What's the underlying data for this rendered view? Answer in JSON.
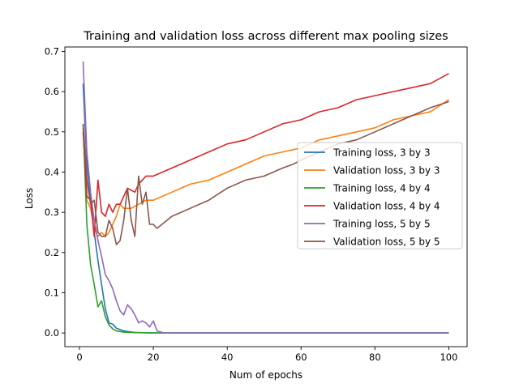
{
  "chart_data": {
    "type": "line",
    "title": "Training and validation loss across different max pooling sizes",
    "xlabel": "Num of epochs",
    "ylabel": "Loss",
    "xlim": [
      -3.95,
      104.95
    ],
    "ylim": [
      -0.034,
      0.711
    ],
    "xticks": [
      0,
      20,
      40,
      60,
      80,
      100
    ],
    "yticks": [
      0.0,
      0.1,
      0.2,
      0.3,
      0.4,
      0.5,
      0.6,
      0.7
    ],
    "xtick_labels": [
      "0",
      "20",
      "40",
      "60",
      "80",
      "100"
    ],
    "ytick_labels": [
      "0.0",
      "0.1",
      "0.2",
      "0.3",
      "0.4",
      "0.5",
      "0.6",
      "0.7"
    ],
    "grid": false,
    "legend_position": "center-right",
    "series": [
      {
        "name": "Training loss, 3 by 3",
        "color": "#1f77b4",
        "points": [
          [
            1,
            0.62
          ],
          [
            2,
            0.42
          ],
          [
            3,
            0.33
          ],
          [
            4,
            0.25
          ],
          [
            5,
            0.18
          ],
          [
            6,
            0.12
          ],
          [
            7,
            0.06
          ],
          [
            8,
            0.025
          ],
          [
            9,
            0.022
          ],
          [
            10,
            0.012
          ],
          [
            12,
            0.005
          ],
          [
            15,
            0.001
          ],
          [
            20,
            0.0
          ],
          [
            100,
            0.0
          ]
        ]
      },
      {
        "name": "Validation loss, 3 by 3",
        "color": "#ff7f0e",
        "points": [
          [
            1,
            0.51
          ],
          [
            2,
            0.33
          ],
          [
            3,
            0.31
          ],
          [
            4,
            0.26
          ],
          [
            5,
            0.24
          ],
          [
            6,
            0.25
          ],
          [
            7,
            0.24
          ],
          [
            8,
            0.25
          ],
          [
            9,
            0.27
          ],
          [
            10,
            0.29
          ],
          [
            11,
            0.32
          ],
          [
            12,
            0.31
          ],
          [
            14,
            0.31
          ],
          [
            16,
            0.32
          ],
          [
            18,
            0.33
          ],
          [
            20,
            0.33
          ],
          [
            25,
            0.35
          ],
          [
            30,
            0.37
          ],
          [
            35,
            0.38
          ],
          [
            40,
            0.4
          ],
          [
            45,
            0.42
          ],
          [
            50,
            0.44
          ],
          [
            55,
            0.45
          ],
          [
            60,
            0.46
          ],
          [
            65,
            0.48
          ],
          [
            70,
            0.49
          ],
          [
            75,
            0.5
          ],
          [
            80,
            0.51
          ],
          [
            85,
            0.53
          ],
          [
            90,
            0.54
          ],
          [
            95,
            0.55
          ],
          [
            100,
            0.58
          ]
        ]
      },
      {
        "name": "Training loss, 4 by 4",
        "color": "#2ca02c",
        "points": [
          [
            1,
            0.52
          ],
          [
            2,
            0.27
          ],
          [
            3,
            0.17
          ],
          [
            4,
            0.12
          ],
          [
            5,
            0.065
          ],
          [
            6,
            0.08
          ],
          [
            7,
            0.04
          ],
          [
            8,
            0.02
          ],
          [
            9,
            0.01
          ],
          [
            10,
            0.005
          ],
          [
            12,
            0.002
          ],
          [
            15,
            0.001
          ],
          [
            20,
            0.0
          ],
          [
            100,
            0.0
          ]
        ]
      },
      {
        "name": "Validation loss, 4 by 4",
        "color": "#d62728",
        "points": [
          [
            1,
            0.5
          ],
          [
            2,
            0.34
          ],
          [
            3,
            0.33
          ],
          [
            4,
            0.24
          ],
          [
            5,
            0.38
          ],
          [
            6,
            0.3
          ],
          [
            7,
            0.29
          ],
          [
            8,
            0.32
          ],
          [
            9,
            0.3
          ],
          [
            10,
            0.32
          ],
          [
            11,
            0.32
          ],
          [
            12,
            0.34
          ],
          [
            13,
            0.36
          ],
          [
            15,
            0.35
          ],
          [
            16,
            0.37
          ],
          [
            18,
            0.39
          ],
          [
            20,
            0.39
          ],
          [
            25,
            0.41
          ],
          [
            30,
            0.43
          ],
          [
            35,
            0.45
          ],
          [
            40,
            0.47
          ],
          [
            45,
            0.48
          ],
          [
            50,
            0.5
          ],
          [
            55,
            0.52
          ],
          [
            60,
            0.53
          ],
          [
            65,
            0.55
          ],
          [
            70,
            0.56
          ],
          [
            75,
            0.58
          ],
          [
            80,
            0.59
          ],
          [
            85,
            0.6
          ],
          [
            90,
            0.61
          ],
          [
            95,
            0.62
          ],
          [
            100,
            0.645
          ]
        ]
      },
      {
        "name": "Training loss, 5 by 5",
        "color": "#9467bd",
        "points": [
          [
            1,
            0.675
          ],
          [
            2,
            0.45
          ],
          [
            3,
            0.35
          ],
          [
            4,
            0.28
          ],
          [
            5,
            0.23
          ],
          [
            6,
            0.19
          ],
          [
            7,
            0.145
          ],
          [
            8,
            0.13
          ],
          [
            9,
            0.11
          ],
          [
            10,
            0.08
          ],
          [
            11,
            0.055
          ],
          [
            12,
            0.045
          ],
          [
            13,
            0.07
          ],
          [
            14,
            0.06
          ],
          [
            15,
            0.045
          ],
          [
            16,
            0.025
          ],
          [
            17,
            0.03
          ],
          [
            18,
            0.025
          ],
          [
            19,
            0.015
          ],
          [
            20,
            0.03
          ],
          [
            21,
            0.005
          ],
          [
            23,
            0.0
          ],
          [
            100,
            0.0
          ]
        ]
      },
      {
        "name": "Validation loss, 5 by 5",
        "color": "#8c564b",
        "points": [
          [
            1,
            0.52
          ],
          [
            2,
            0.38
          ],
          [
            3,
            0.32
          ],
          [
            4,
            0.33
          ],
          [
            5,
            0.25
          ],
          [
            6,
            0.24
          ],
          [
            7,
            0.24
          ],
          [
            8,
            0.28
          ],
          [
            9,
            0.26
          ],
          [
            10,
            0.22
          ],
          [
            11,
            0.23
          ],
          [
            12,
            0.28
          ],
          [
            13,
            0.36
          ],
          [
            14,
            0.28
          ],
          [
            15,
            0.24
          ],
          [
            16,
            0.39
          ],
          [
            17,
            0.32
          ],
          [
            18,
            0.35
          ],
          [
            19,
            0.27
          ],
          [
            20,
            0.27
          ],
          [
            21,
            0.26
          ],
          [
            25,
            0.29
          ],
          [
            30,
            0.31
          ],
          [
            35,
            0.33
          ],
          [
            40,
            0.36
          ],
          [
            45,
            0.38
          ],
          [
            50,
            0.39
          ],
          [
            55,
            0.41
          ],
          [
            58,
            0.42
          ],
          [
            60,
            0.43
          ],
          [
            65,
            0.45
          ],
          [
            70,
            0.47
          ],
          [
            75,
            0.48
          ],
          [
            80,
            0.5
          ],
          [
            85,
            0.52
          ],
          [
            90,
            0.54
          ],
          [
            95,
            0.56
          ],
          [
            100,
            0.575
          ]
        ]
      }
    ]
  }
}
